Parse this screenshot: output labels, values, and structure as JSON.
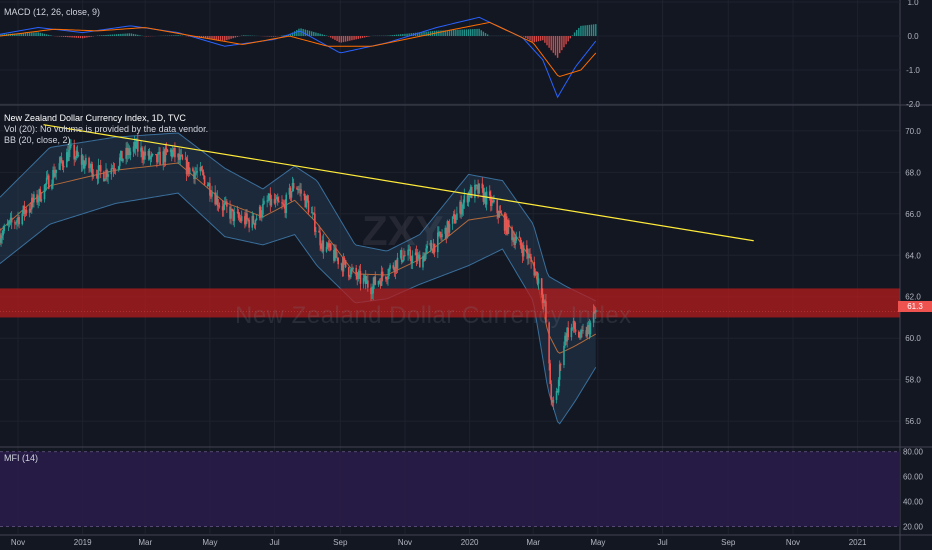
{
  "legends": {
    "main_title": "New Zealand Dollar Currency Index, 1D, TVC",
    "vol": "Vol (20): No volume is provided by the data vendor.",
    "bb": "BB (20, close, 2)",
    "macd": "MACD (12, 26, close, 9)",
    "mfi": "MFI (14)"
  },
  "watermark": {
    "symbol": "ZXY",
    "name": "New Zealand Dollar Currency Index"
  },
  "price_tag": "61.3",
  "colors": {
    "background": "#131722",
    "up": "#26a69a",
    "down": "#ef5350",
    "trendline": "#ffeb3b",
    "zone": "#b71c1c",
    "bb_band": "#2a4a6b",
    "mfi_band": "#2a1c4a"
  },
  "chart_data": [
    {
      "type": "candlestick",
      "title": "New Zealand Dollar Currency Index, 1D, TVC",
      "x_tick_labels": [
        "Nov",
        "2019",
        "Mar",
        "May",
        "Jul",
        "Sep",
        "Nov",
        "2020",
        "Mar",
        "May",
        "Jul",
        "Sep",
        "Nov",
        "2021"
      ],
      "y_tick_labels": [
        "56.0",
        "58.0",
        "60.0",
        "62.0",
        "64.0",
        "66.0",
        "68.0",
        "70.0"
      ],
      "ylim": [
        54.8,
        71.2
      ],
      "x_range": [
        "2018-10-15",
        "2021-02-10"
      ],
      "close_path": [
        [
          "2018-10-15",
          65.0
        ],
        [
          "2018-11-01",
          65.8
        ],
        [
          "2018-11-20",
          66.8
        ],
        [
          "2018-12-05",
          68.0
        ],
        [
          "2018-12-20",
          69.0
        ],
        [
          "2019-01-05",
          68.3
        ],
        [
          "2019-01-20",
          67.9
        ],
        [
          "2019-02-05",
          68.6
        ],
        [
          "2019-02-20",
          69.2
        ],
        [
          "2019-03-10",
          68.5
        ],
        [
          "2019-03-25",
          69.0
        ],
        [
          "2019-04-10",
          68.2
        ],
        [
          "2019-04-25",
          67.8
        ],
        [
          "2019-05-10",
          66.5
        ],
        [
          "2019-05-25",
          65.8
        ],
        [
          "2019-06-10",
          65.6
        ],
        [
          "2019-06-25",
          66.6
        ],
        [
          "2019-07-10",
          66.3
        ],
        [
          "2019-07-20",
          67.5
        ],
        [
          "2019-08-01",
          66.5
        ],
        [
          "2019-08-15",
          64.5
        ],
        [
          "2019-08-30",
          63.8
        ],
        [
          "2019-09-15",
          63.0
        ],
        [
          "2019-09-30",
          62.5
        ],
        [
          "2019-10-15",
          63.2
        ],
        [
          "2019-10-30",
          64.0
        ],
        [
          "2019-11-15",
          63.8
        ],
        [
          "2019-11-30",
          64.6
        ],
        [
          "2019-12-15",
          65.5
        ],
        [
          "2019-12-31",
          67.0
        ],
        [
          "2020-01-10",
          67.1
        ],
        [
          "2020-01-25",
          66.3
        ],
        [
          "2020-02-10",
          65.0
        ],
        [
          "2020-02-25",
          64.0
        ],
        [
          "2020-03-08",
          62.6
        ],
        [
          "2020-03-12",
          61.5
        ],
        [
          "2020-03-16",
          58.5
        ],
        [
          "2020-03-19",
          56.6
        ],
        [
          "2020-03-24",
          57.5
        ],
        [
          "2020-03-28",
          59.5
        ],
        [
          "2020-04-02",
          60.3
        ],
        [
          "2020-04-08",
          60.5
        ],
        [
          "2020-04-15",
          60.0
        ],
        [
          "2020-04-22",
          60.4
        ],
        [
          "2020-04-29",
          61.3
        ]
      ],
      "bollinger": {
        "period": 20,
        "multiplier": 2,
        "upper_path": [
          [
            "2018-10-15",
            66.8
          ],
          [
            "2018-12-01",
            69.2
          ],
          [
            "2019-02-01",
            69.7
          ],
          [
            "2019-04-01",
            69.9
          ],
          [
            "2019-05-15",
            68.2
          ],
          [
            "2019-06-20",
            67.2
          ],
          [
            "2019-07-20",
            68.3
          ],
          [
            "2019-08-10",
            67.6
          ],
          [
            "2019-09-15",
            64.5
          ],
          [
            "2019-10-15",
            64.2
          ],
          [
            "2019-11-15",
            65.0
          ],
          [
            "2019-12-31",
            67.9
          ],
          [
            "2020-02-01",
            67.6
          ],
          [
            "2020-03-01",
            65.5
          ],
          [
            "2020-03-15",
            63.0
          ],
          [
            "2020-04-01",
            62.5
          ],
          [
            "2020-04-29",
            61.8
          ]
        ],
        "lower_path": [
          [
            "2018-10-15",
            63.6
          ],
          [
            "2018-12-01",
            65.5
          ],
          [
            "2019-02-01",
            66.5
          ],
          [
            "2019-04-01",
            67.0
          ],
          [
            "2019-05-15",
            64.9
          ],
          [
            "2019-06-20",
            64.5
          ],
          [
            "2019-07-20",
            65.0
          ],
          [
            "2019-08-10",
            63.5
          ],
          [
            "2019-09-15",
            61.7
          ],
          [
            "2019-10-15",
            61.9
          ],
          [
            "2019-11-15",
            62.6
          ],
          [
            "2019-12-31",
            63.5
          ],
          [
            "2020-02-01",
            64.3
          ],
          [
            "2020-03-01",
            61.8
          ],
          [
            "2020-03-15",
            57.5
          ],
          [
            "2020-03-25",
            55.8
          ],
          [
            "2020-04-10",
            57.0
          ],
          [
            "2020-04-29",
            58.6
          ]
        ]
      },
      "trendline": {
        "start": [
          "2018-11-25",
          70.3
        ],
        "end": [
          "2020-09-25",
          64.7
        ]
      },
      "resistance_zone": {
        "low": 61.0,
        "high": 62.4
      },
      "last_price": 61.3
    },
    {
      "type": "bar",
      "title": "MACD (12, 26, close, 9)",
      "y_tick_labels": [
        "1.0",
        "0.0",
        "-1.0",
        "-2.0"
      ],
      "ylim": [
        -2.0,
        1.0
      ],
      "x_range": [
        "2018-10-15",
        "2021-02-10"
      ],
      "macd_path": [
        [
          "2018-10-15",
          0.05
        ],
        [
          "2018-11-20",
          0.25
        ],
        [
          "2019-01-01",
          0.1
        ],
        [
          "2019-02-15",
          0.3
        ],
        [
          "2019-04-01",
          0.1
        ],
        [
          "2019-05-15",
          -0.3
        ],
        [
          "2019-07-01",
          -0.1
        ],
        [
          "2019-07-25",
          0.15
        ],
        [
          "2019-09-01",
          -0.5
        ],
        [
          "2019-10-15",
          -0.2
        ],
        [
          "2019-12-01",
          0.25
        ],
        [
          "2020-01-10",
          0.55
        ],
        [
          "2020-02-20",
          -0.05
        ],
        [
          "2020-03-10",
          -0.7
        ],
        [
          "2020-03-24",
          -1.8
        ],
        [
          "2020-04-10",
          -0.9
        ],
        [
          "2020-04-29",
          -0.15
        ]
      ],
      "signal_path": [
        [
          "2018-10-15",
          0.0
        ],
        [
          "2018-12-05",
          0.2
        ],
        [
          "2019-01-15",
          0.15
        ],
        [
          "2019-03-01",
          0.25
        ],
        [
          "2019-04-15",
          0.0
        ],
        [
          "2019-06-01",
          -0.25
        ],
        [
          "2019-07-15",
          0.0
        ],
        [
          "2019-08-20",
          -0.3
        ],
        [
          "2019-10-01",
          -0.3
        ],
        [
          "2019-12-10",
          0.15
        ],
        [
          "2020-01-20",
          0.4
        ],
        [
          "2020-03-01",
          -0.2
        ],
        [
          "2020-03-25",
          -1.2
        ],
        [
          "2020-04-15",
          -1.0
        ],
        [
          "2020-04-29",
          -0.5
        ]
      ]
    },
    {
      "type": "area",
      "title": "MFI (14)",
      "y_tick_labels": [
        "80.00",
        "60.00",
        "40.00",
        "20.00"
      ],
      "ylim": [
        14,
        83
      ],
      "bands": [
        20,
        80
      ]
    }
  ]
}
